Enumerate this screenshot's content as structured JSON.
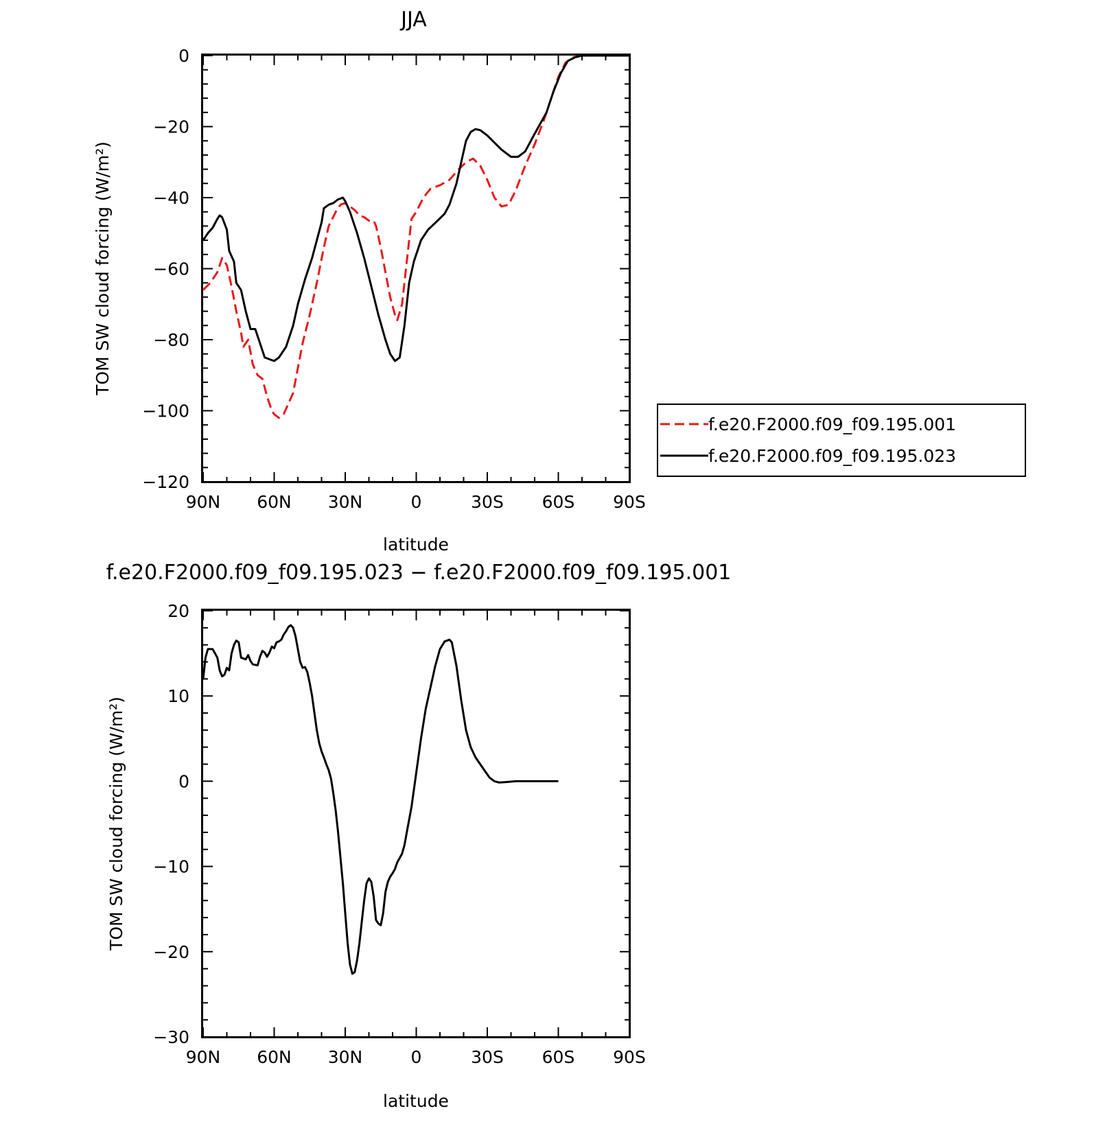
{
  "chart_data": [
    {
      "type": "line",
      "title": "JJA",
      "xlabel": "latitude",
      "ylabel": "TOM SW cloud forcing (W/m²)",
      "xlim": [
        90,
        -90
      ],
      "ylim": [
        -120,
        0
      ],
      "xticks": [
        {
          "value": 90,
          "label": "90N"
        },
        {
          "value": 60,
          "label": "60N"
        },
        {
          "value": 30,
          "label": "30N"
        },
        {
          "value": 0,
          "label": "0"
        },
        {
          "value": -30,
          "label": "30S"
        },
        {
          "value": -60,
          "label": "60S"
        },
        {
          "value": -90,
          "label": "90S"
        }
      ],
      "yticks": [
        {
          "value": 0,
          "label": "0"
        },
        {
          "value": -20,
          "label": "−20"
        },
        {
          "value": -40,
          "label": "−40"
        },
        {
          "value": -60,
          "label": "−60"
        },
        {
          "value": -80,
          "label": "−80"
        },
        {
          "value": -100,
          "label": "−100"
        },
        {
          "value": -120,
          "label": "−120"
        }
      ],
      "legend": "right",
      "series": [
        {
          "name": "f.e20.F2000.f09_f09.195.001",
          "color": "#e8191a",
          "dash": "dashed",
          "points": [
            [
              90,
              -66
            ],
            [
              87,
              -64
            ],
            [
              84,
              -61
            ],
            [
              82,
              -57
            ],
            [
              80,
              -59
            ],
            [
              78,
              -65
            ],
            [
              76,
              -72
            ],
            [
              74,
              -78
            ],
            [
              73,
              -82
            ],
            [
              71,
              -80
            ],
            [
              69,
              -87
            ],
            [
              67,
              -90
            ],
            [
              65,
              -91
            ],
            [
              63,
              -96
            ],
            [
              61,
              -100
            ],
            [
              60,
              -101
            ],
            [
              58,
              -102
            ],
            [
              56,
              -101
            ],
            [
              54,
              -98
            ],
            [
              52,
              -95
            ],
            [
              50,
              -88
            ],
            [
              48,
              -81
            ],
            [
              45,
              -73
            ],
            [
              42,
              -64
            ],
            [
              39,
              -54
            ],
            [
              37,
              -48
            ],
            [
              34,
              -44
            ],
            [
              32,
              -42
            ],
            [
              30,
              -41.5
            ],
            [
              28,
              -42.5
            ],
            [
              26,
              -43.5
            ],
            [
              24,
              -45
            ],
            [
              22,
              -45.5
            ],
            [
              20,
              -46.5
            ],
            [
              18,
              -46.5
            ],
            [
              17,
              -48
            ],
            [
              15,
              -54
            ],
            [
              13,
              -61
            ],
            [
              11,
              -68
            ],
            [
              9,
              -73
            ],
            [
              8,
              -74.5
            ],
            [
              6,
              -70
            ],
            [
              4,
              -58
            ],
            [
              2,
              -46
            ],
            [
              0,
              -44
            ],
            [
              -3,
              -40
            ],
            [
              -6,
              -37.5
            ],
            [
              -10,
              -36.5
            ],
            [
              -14,
              -35
            ],
            [
              -18,
              -32
            ],
            [
              -21,
              -30
            ],
            [
              -24,
              -29
            ],
            [
              -27,
              -31
            ],
            [
              -30,
              -35
            ],
            [
              -33,
              -40
            ],
            [
              -36,
              -42.5
            ],
            [
              -39,
              -42
            ],
            [
              -42,
              -38
            ],
            [
              -46,
              -31
            ],
            [
              -50,
              -25
            ],
            [
              -54,
              -18
            ],
            [
              -57,
              -12
            ],
            [
              -60,
              -6
            ],
            [
              -63,
              -2
            ],
            [
              -66,
              -0.5
            ],
            [
              -70,
              0
            ],
            [
              -90,
              0
            ]
          ]
        },
        {
          "name": "f.e20.F2000.f09_f09.195.023",
          "color": "#000000",
          "dash": "solid",
          "points": [
            [
              90,
              -52
            ],
            [
              88,
              -50
            ],
            [
              86,
              -48.5
            ],
            [
              84,
              -46
            ],
            [
              83,
              -45
            ],
            [
              82,
              -45.5
            ],
            [
              80,
              -49
            ],
            [
              79,
              -55
            ],
            [
              77,
              -58
            ],
            [
              76,
              -64
            ],
            [
              74,
              -66
            ],
            [
              72,
              -72
            ],
            [
              70,
              -77
            ],
            [
              68,
              -77
            ],
            [
              66,
              -81
            ],
            [
              64,
              -85
            ],
            [
              62,
              -85.5
            ],
            [
              60,
              -86
            ],
            [
              58,
              -85
            ],
            [
              55,
              -82
            ],
            [
              52,
              -76
            ],
            [
              50,
              -70
            ],
            [
              47,
              -63
            ],
            [
              44,
              -57
            ],
            [
              42,
              -52
            ],
            [
              40,
              -47
            ],
            [
              39,
              -43
            ],
            [
              37,
              -42
            ],
            [
              35,
              -41.5
            ],
            [
              33,
              -40.5
            ],
            [
              31,
              -40
            ],
            [
              30,
              -41
            ],
            [
              28,
              -44
            ],
            [
              25,
              -50
            ],
            [
              22,
              -57
            ],
            [
              19,
              -65
            ],
            [
              16,
              -73
            ],
            [
              13,
              -80
            ],
            [
              11,
              -84
            ],
            [
              9,
              -86
            ],
            [
              7,
              -85
            ],
            [
              5,
              -76
            ],
            [
              3,
              -64
            ],
            [
              1,
              -58
            ],
            [
              -2,
              -52
            ],
            [
              -5,
              -49
            ],
            [
              -9,
              -46.5
            ],
            [
              -12,
              -44.5
            ],
            [
              -14,
              -42
            ],
            [
              -17,
              -36
            ],
            [
              -19,
              -30
            ],
            [
              -21,
              -24
            ],
            [
              -23,
              -21.5
            ],
            [
              -25,
              -20.7
            ],
            [
              -27,
              -21
            ],
            [
              -30,
              -22.5
            ],
            [
              -33,
              -24.5
            ],
            [
              -36,
              -26.5
            ],
            [
              -40,
              -28.5
            ],
            [
              -43,
              -28.5
            ],
            [
              -46,
              -27
            ],
            [
              -50,
              -22
            ],
            [
              -55,
              -16
            ],
            [
              -58,
              -10
            ],
            [
              -61,
              -5
            ],
            [
              -64,
              -1.5
            ],
            [
              -67,
              -0.5
            ],
            [
              -70,
              0
            ],
            [
              -90,
              0
            ]
          ]
        }
      ]
    },
    {
      "type": "line",
      "title": "f.e20.F2000.f09_f09.195.023 − f.e20.F2000.f09_f09.195.001",
      "xlabel": "latitude",
      "ylabel": "TOM SW cloud forcing (W/m²)",
      "xlim": [
        90,
        -90
      ],
      "ylim": [
        -30,
        20
      ],
      "xticks": [
        {
          "value": 90,
          "label": "90N"
        },
        {
          "value": 60,
          "label": "60N"
        },
        {
          "value": 30,
          "label": "30N"
        },
        {
          "value": 0,
          "label": "0"
        },
        {
          "value": -30,
          "label": "30S"
        },
        {
          "value": -60,
          "label": "60S"
        },
        {
          "value": -90,
          "label": "90S"
        }
      ],
      "yticks": [
        {
          "value": 20,
          "label": "20"
        },
        {
          "value": 10,
          "label": "10"
        },
        {
          "value": 0,
          "label": "0"
        },
        {
          "value": -10,
          "label": "−10"
        },
        {
          "value": -20,
          "label": "−20"
        },
        {
          "value": -30,
          "label": "−30"
        }
      ],
      "series": [
        {
          "name": "",
          "color": "#000000",
          "dash": "solid",
          "points": [
            [
              90,
              12
            ],
            [
              89,
              14.5
            ],
            [
              88,
              15.5
            ],
            [
              86,
              15.5
            ],
            [
              84,
              14.5
            ],
            [
              83,
              13
            ],
            [
              82,
              12.3
            ],
            [
              81,
              12.5
            ],
            [
              80,
              13.3
            ],
            [
              79,
              13
            ],
            [
              78,
              15
            ],
            [
              77,
              16
            ],
            [
              76,
              16.5
            ],
            [
              75,
              16.3
            ],
            [
              74,
              14.5
            ],
            [
              72,
              14.3
            ],
            [
              71,
              14.8
            ],
            [
              70,
              14.1
            ],
            [
              69,
              13.7
            ],
            [
              67,
              13.6
            ],
            [
              66,
              14.6
            ],
            [
              65,
              15.3
            ],
            [
              64,
              15.1
            ],
            [
              63,
              14.6
            ],
            [
              62,
              15.1
            ],
            [
              61,
              15.8
            ],
            [
              60,
              15.6
            ],
            [
              59,
              16.3
            ],
            [
              58,
              16.4
            ],
            [
              57,
              16.6
            ],
            [
              56,
              17.2
            ],
            [
              55,
              17.6
            ],
            [
              54,
              18.1
            ],
            [
              53,
              18.3
            ],
            [
              52,
              18
            ],
            [
              51,
              17
            ],
            [
              50,
              15.5
            ],
            [
              49,
              14
            ],
            [
              48,
              13.3
            ],
            [
              47,
              13.4
            ],
            [
              46,
              12.8
            ],
            [
              45,
              11.5
            ],
            [
              44,
              10
            ],
            [
              43,
              8
            ],
            [
              42,
              6
            ],
            [
              41,
              4.5
            ],
            [
              40,
              3.5
            ],
            [
              39,
              2.8
            ],
            [
              38,
              2
            ],
            [
              37,
              1.3
            ],
            [
              36,
              0.3
            ],
            [
              35,
              -1.5
            ],
            [
              34,
              -3.5
            ],
            [
              33,
              -6
            ],
            [
              32,
              -9
            ],
            [
              31,
              -12
            ],
            [
              30,
              -15.5
            ],
            [
              29,
              -19
            ],
            [
              28,
              -21.5
            ],
            [
              27,
              -22.6
            ],
            [
              26,
              -22.4
            ],
            [
              25,
              -21
            ],
            [
              24,
              -19
            ],
            [
              23,
              -16.5
            ],
            [
              22,
              -14
            ],
            [
              21,
              -12
            ],
            [
              20,
              -11.4
            ],
            [
              19,
              -11.8
            ],
            [
              18,
              -13.5
            ],
            [
              17,
              -16.3
            ],
            [
              16,
              -16.7
            ],
            [
              15,
              -16.9
            ],
            [
              14,
              -15.5
            ],
            [
              13,
              -13
            ],
            [
              12,
              -11.8
            ],
            [
              11,
              -11.2
            ],
            [
              10,
              -10.8
            ],
            [
              9,
              -10.3
            ],
            [
              8,
              -9.5
            ],
            [
              7,
              -9
            ],
            [
              6,
              -8.5
            ],
            [
              5,
              -7.5
            ],
            [
              4,
              -6
            ],
            [
              2,
              -3
            ],
            [
              0,
              1
            ],
            [
              -2,
              5
            ],
            [
              -4,
              8.5
            ],
            [
              -6,
              11
            ],
            [
              -8,
              13.5
            ],
            [
              -10,
              15.5
            ],
            [
              -12,
              16.4
            ],
            [
              -14,
              16.6
            ],
            [
              -15,
              16.3
            ],
            [
              -17,
              13.5
            ],
            [
              -19,
              9.5
            ],
            [
              -21,
              6
            ],
            [
              -23,
              4
            ],
            [
              -25,
              2.8
            ],
            [
              -27,
              2
            ],
            [
              -29,
              1.2
            ],
            [
              -31,
              0.4
            ],
            [
              -33,
              0
            ],
            [
              -35,
              -0.15
            ],
            [
              -38,
              -0.1
            ],
            [
              -42,
              0
            ],
            [
              -60,
              0
            ]
          ]
        }
      ]
    }
  ]
}
